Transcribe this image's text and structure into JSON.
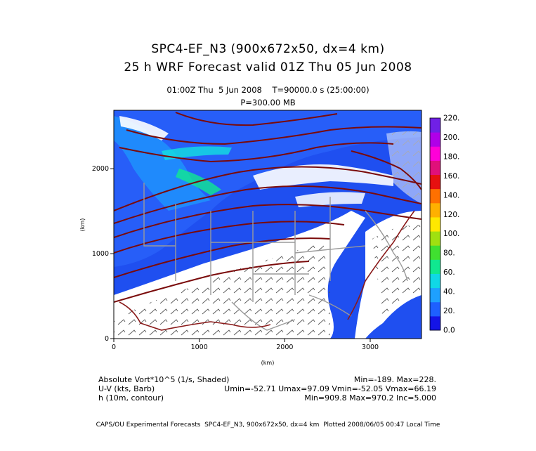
{
  "header": {
    "title_line1": "SPC4-EF_N3 (900x672x50, dx=4 km)",
    "title_line2": "25 h WRF Forecast valid 01Z Thu 05 Jun 2008",
    "time_info": "01:00Z Thu  5 Jun 2008    T=90000.0 s (25:00:00)",
    "pressure_level": "P=300.00 MB"
  },
  "chart_data": {
    "type": "heatmap",
    "xlabel": "(km)",
    "ylabel": "(km)",
    "xlim": [
      0,
      3600
    ],
    "ylim": [
      0,
      2688
    ],
    "x_ticks": [
      0,
      1000,
      2000,
      3000
    ],
    "y_ticks": [
      0,
      1000,
      2000
    ],
    "colorbar": {
      "ticks": [
        "0.0",
        "20.",
        "40.",
        "60.",
        "80.",
        "100.",
        "120.",
        "140.",
        "160.",
        "180.",
        "200.",
        "220."
      ],
      "colors": [
        "#1414e6",
        "#1e60ff",
        "#1ea0ff",
        "#10d8e6",
        "#10e890",
        "#40e030",
        "#a0e010",
        "#ffe800",
        "#ffb000",
        "#ff7000",
        "#e61010",
        "#e0107a",
        "#ff00d8",
        "#b000e8",
        "#7020e6"
      ]
    }
  },
  "footer": {
    "field1_label": "Absolute Vort*10^5 (1/s, Shaded)",
    "field1_stats": "Min=-189. Max=228.",
    "field2_label": "U-V (kts, Barb)",
    "field2_stats": "Umin=-52.71 Umax=97.09 Vmin=-52.05 Vmax=66.19",
    "field3_label": "h (10m, contour)",
    "field3_stats": "Min=909.8 Max=970.2 Inc=5.000",
    "credits": "CAPS/OU Experimental Forecasts  SPC4-EF_N3, 900x672x50, dx=4 km  Plotted 2008/06/05 00:47 Local Time"
  }
}
